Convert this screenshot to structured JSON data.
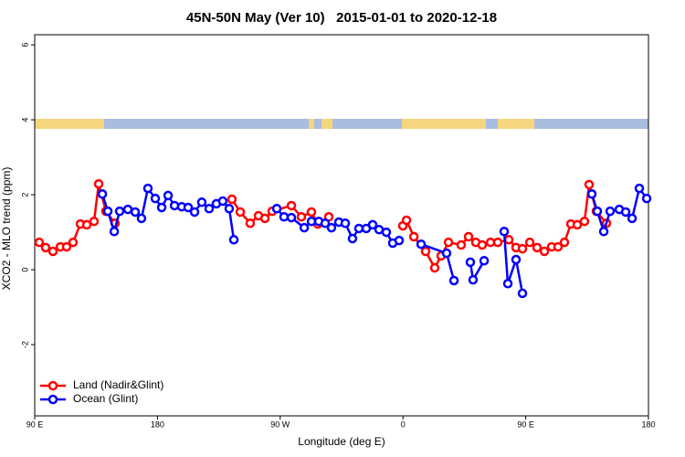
{
  "chart_data": {
    "type": "line",
    "title": "45N-50N May (Ver 10)   2015-01-01 to 2020-12-18",
    "xlabel": "Longitude (deg E)",
    "ylabel": "XCO2 - MLO trend (ppm)",
    "xlim": [
      90,
      540
    ],
    "ylim": [
      -3.9,
      6.27
    ],
    "xticks": [
      {
        "value": 90,
        "label": "90 E"
      },
      180,
      {
        "value": 270,
        "label": "90 W"
      },
      {
        "value": 360,
        "label": "0"
      },
      {
        "value": 450,
        "label": "90 E"
      },
      {
        "value": 540,
        "label": "180"
      }
    ],
    "yticks": [
      -2,
      0,
      2,
      4,
      6
    ],
    "legend": "bottom-left",
    "series": [
      {
        "name": "Land (Nadir&Glint)",
        "color": "#ff0000",
        "x": [
          93.3,
          98,
          103.4,
          108.8,
          113.4,
          118.1,
          123.5,
          128.2,
          133.5,
          136.9,
          142.2,
          148.9,
          null,
          234.6,
          240.7,
          248,
          254.1,
          258.8,
          264.1,
          278.2,
          285.5,
          292.9,
          297.6,
          305.6,
          null,
          359.9,
          362.6,
          368,
          376.6,
          383.3,
          388,
          393.4,
          402.7,
          408.1,
          413.4,
          418.1,
          424.2,
          429.5,
          437.6,
          442.9,
          447.6,
          453,
          458.3,
          463.7,
          469,
          473.7,
          478.4,
          483.1,
          487.8,
          493.1,
          496.5,
          501.8,
          509.2
        ],
        "values": [
          0.73,
          0.59,
          0.49,
          0.61,
          0.61,
          0.73,
          1.22,
          1.2,
          1.29,
          2.29,
          1.56,
          1.24,
          null,
          1.88,
          1.54,
          1.24,
          1.44,
          1.37,
          1.56,
          1.71,
          1.41,
          1.54,
          1.22,
          1.41,
          null,
          1.17,
          1.32,
          0.88,
          0.49,
          0.05,
          0.37,
          0.73,
          0.66,
          0.88,
          0.73,
          0.66,
          0.73,
          0.73,
          0.8,
          0.59,
          0.56,
          0.73,
          0.59,
          0.49,
          0.61,
          0.61,
          0.73,
          1.22,
          1.2,
          1.29,
          2.27,
          1.56,
          1.24
        ]
      },
      {
        "name": "Ocean (Glint)",
        "color": "#0000ff",
        "x": [
          139.6,
          143.6,
          148.3,
          152.3,
          158.3,
          163.7,
          168.3,
          173,
          178.4,
          183.1,
          187.8,
          192.5,
          197.8,
          202.5,
          207.2,
          212.5,
          217.9,
          223.2,
          227.9,
          232.6,
          236,
          null,
          267.5,
          272.8,
          278.2,
          287.6,
          292.9,
          298.3,
          303,
          307.6,
          313,
          317.7,
          323,
          327.7,
          333.1,
          337.8,
          342.5,
          347.8,
          352.5,
          357.2,
          null,
          373.3,
          392,
          397.4,
          null,
          409.4,
          411.4,
          419.5,
          null,
          434.2,
          436.9,
          442.9,
          447.6,
          null,
          498.5,
          502.5,
          507.2,
          511.9,
          518.6,
          523.3,
          528,
          533.3,
          538.7
        ],
        "values": [
          2.02,
          1.56,
          1.02,
          1.56,
          1.61,
          1.54,
          1.37,
          2.17,
          1.9,
          1.66,
          1.98,
          1.71,
          1.68,
          1.66,
          1.54,
          1.8,
          1.63,
          1.76,
          1.83,
          1.63,
          0.8,
          null,
          1.63,
          1.41,
          1.39,
          1.12,
          1.29,
          1.29,
          1.24,
          1.12,
          1.27,
          1.24,
          0.83,
          1.1,
          1.1,
          1.2,
          1.07,
          1.0,
          0.71,
          0.78,
          null,
          0.68,
          0.44,
          -0.29,
          null,
          0.2,
          -0.27,
          0.24,
          null,
          1.02,
          -0.37,
          0.27,
          -0.63,
          null,
          2.02,
          1.56,
          1.02,
          1.56,
          1.61,
          1.54,
          1.37,
          2.17,
          1.9
        ]
      }
    ]
  }
}
